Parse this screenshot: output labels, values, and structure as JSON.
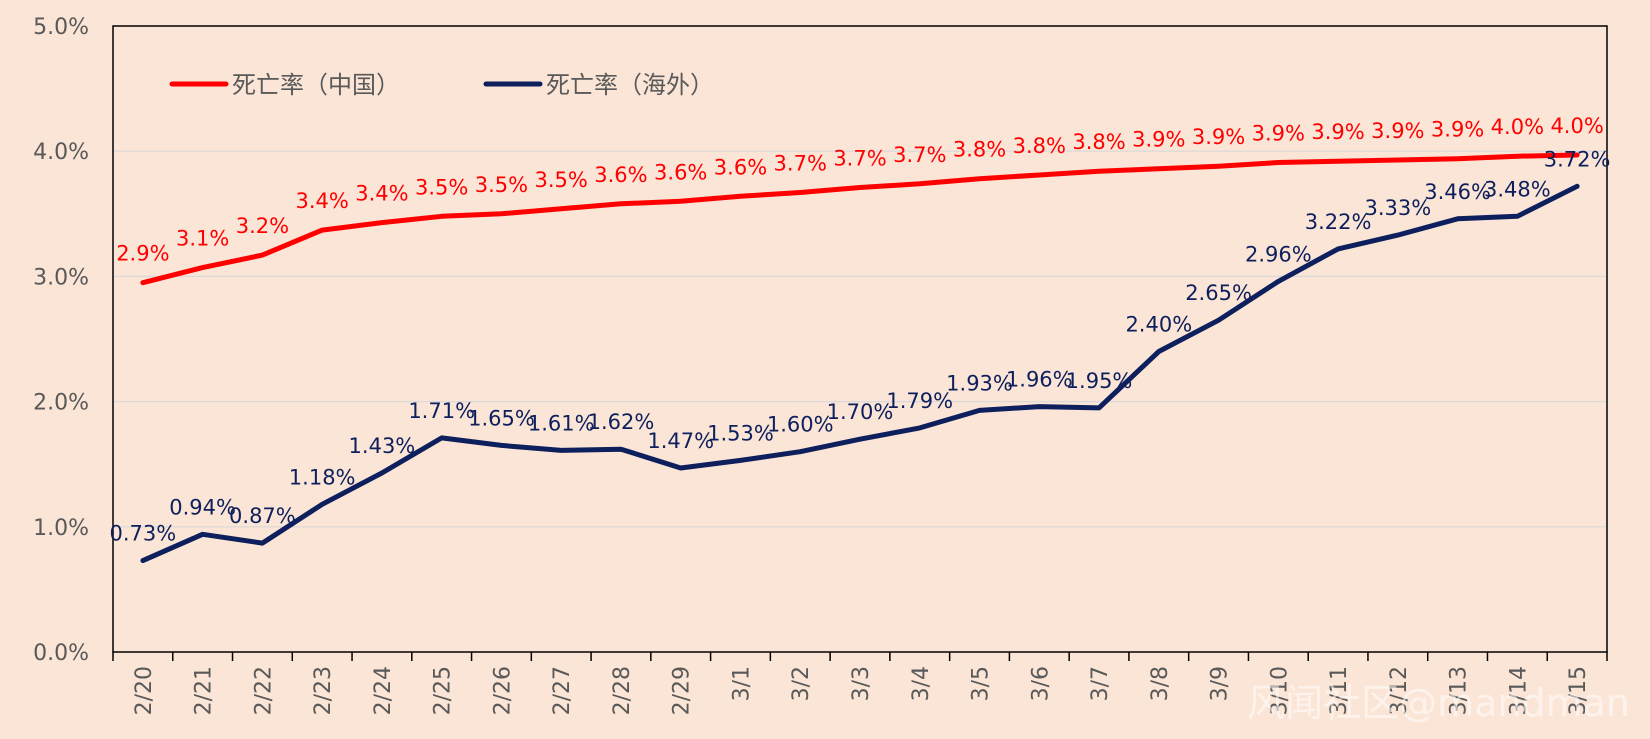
{
  "chart_data": {
    "type": "line",
    "title": "",
    "xlabel": "",
    "ylabel": "",
    "ylim": [
      0,
      0.05
    ],
    "y_ticks": [
      "0.0%",
      "1.0%",
      "2.0%",
      "3.0%",
      "4.0%",
      "5.0%"
    ],
    "y_tick_values": [
      0,
      0.01,
      0.02,
      0.03,
      0.04,
      0.05
    ],
    "grid": "horizontal",
    "legend_position": "top-left",
    "categories": [
      "2/20",
      "2/21",
      "2/22",
      "2/23",
      "2/24",
      "2/25",
      "2/26",
      "2/27",
      "2/28",
      "2/29",
      "3/1",
      "3/2",
      "3/3",
      "3/4",
      "3/5",
      "3/6",
      "3/7",
      "3/8",
      "3/9",
      "3/10",
      "3/11",
      "3/12",
      "3/13",
      "3/14",
      "3/15"
    ],
    "series": [
      {
        "name": "死亡率（中国）",
        "color": "#ff0000",
        "values": [
          0.0295,
          0.0307,
          0.0317,
          0.0337,
          0.0343,
          0.0348,
          0.035,
          0.0354,
          0.0358,
          0.036,
          0.0364,
          0.0367,
          0.0371,
          0.0374,
          0.0378,
          0.0381,
          0.0384,
          0.0386,
          0.0388,
          0.0391,
          0.0392,
          0.0393,
          0.0394,
          0.0396,
          0.0397
        ],
        "labels": [
          "2.9%",
          "3.1%",
          "3.2%",
          "3.4%",
          "3.4%",
          "3.5%",
          "3.5%",
          "3.5%",
          "3.6%",
          "3.6%",
          "3.6%",
          "3.7%",
          "3.7%",
          "3.7%",
          "3.8%",
          "3.8%",
          "3.8%",
          "3.9%",
          "3.9%",
          "3.9%",
          "3.9%",
          "3.9%",
          "3.9%",
          "4.0%",
          "4.0%"
        ]
      },
      {
        "name": "死亡率（海外）",
        "color": "#0d1f5c",
        "values": [
          0.0073,
          0.0094,
          0.0087,
          0.0118,
          0.0143,
          0.0171,
          0.0165,
          0.0161,
          0.0162,
          0.0147,
          0.0153,
          0.016,
          0.017,
          0.0179,
          0.0193,
          0.0196,
          0.0195,
          0.024,
          0.0265,
          0.0296,
          0.0322,
          0.0333,
          0.0346,
          0.0348,
          0.0372
        ],
        "labels": [
          "0.73%",
          "0.94%",
          "0.87%",
          "1.18%",
          "1.43%",
          "1.71%",
          "1.65%",
          "1.61%",
          "1.62%",
          "1.47%",
          "1.53%",
          "1.60%",
          "1.70%",
          "1.79%",
          "1.93%",
          "1.96%",
          "1.95%",
          "2.40%",
          "2.65%",
          "2.96%",
          "3.22%",
          "3.33%",
          "3.46%",
          "3.48%",
          "3.72%"
        ]
      }
    ]
  },
  "watermark": "风闻社区@mandman"
}
